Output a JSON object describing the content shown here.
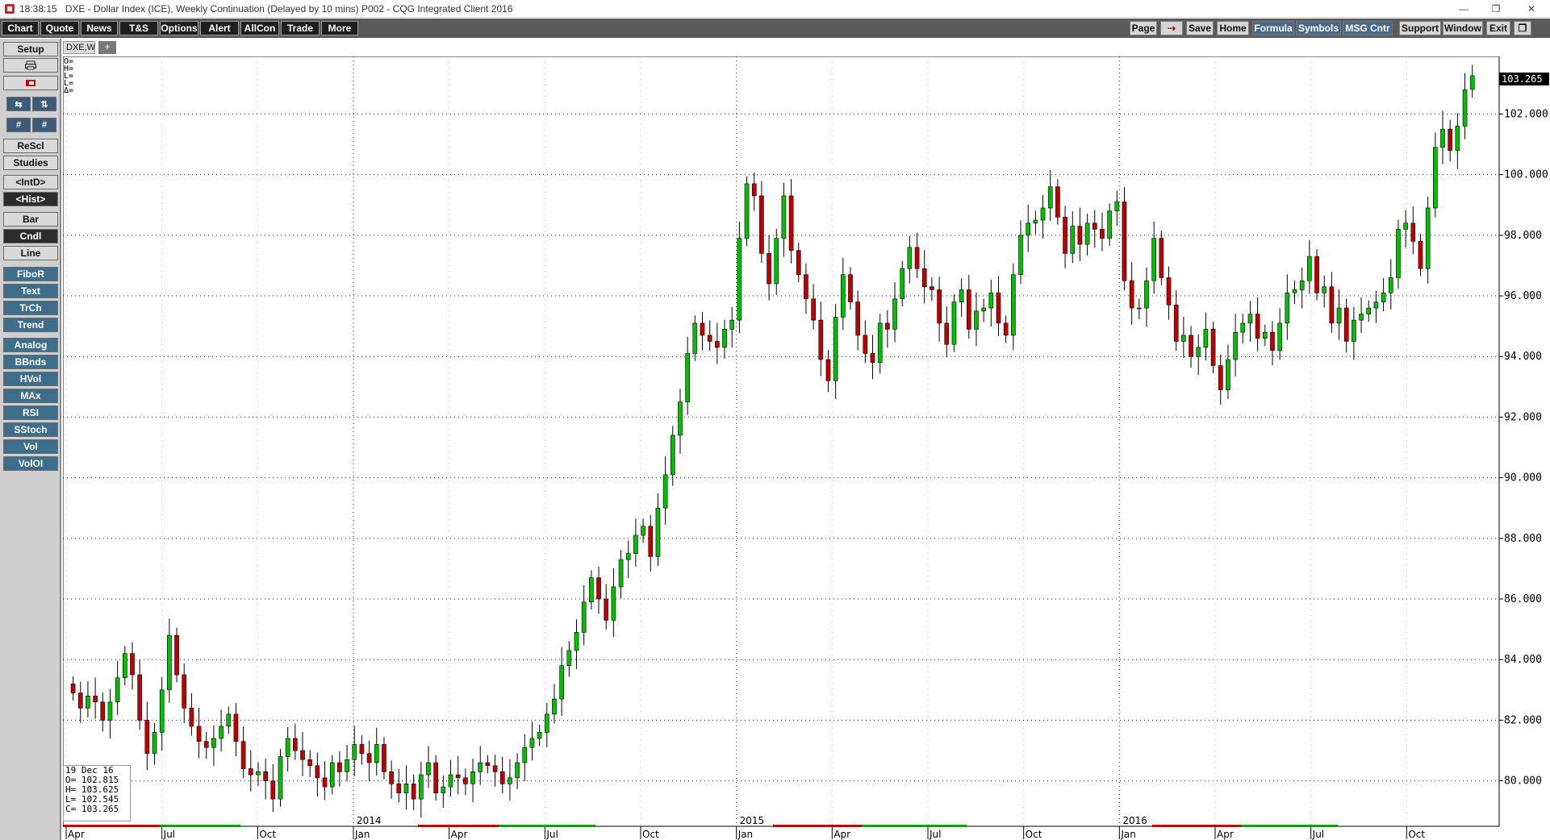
{
  "window": {
    "clock": "18:38:15",
    "title": "DXE - Dollar Index (ICE), Weekly Continuation (Delayed by 10 mins)   P002 - CQG Integrated Client 2016",
    "minimize_glyph": "—",
    "restore_glyph": "❐",
    "close_glyph": "✕"
  },
  "menu": {
    "left": [
      "Chart",
      "Quote",
      "News",
      "T&S",
      "Options",
      "Alert",
      "AllCon",
      "Trade",
      "More"
    ],
    "right": [
      "Page",
      "⇢",
      "Save",
      "Home",
      "Formula",
      "Symbols",
      "MSG Cntr",
      "Support",
      "Window",
      "Exit",
      "❐"
    ]
  },
  "sidebar": {
    "setup": "Setup",
    "print_icon": "printer-icon",
    "rescale": "ReScl",
    "studies": "Studies",
    "intd": "<IntD>",
    "hist": "<Hist>",
    "bar": "Bar",
    "cndl": "Cndl",
    "line": "Line",
    "tools": [
      "FiboR",
      "Text",
      "TrCh",
      "Trend"
    ],
    "indicators": [
      "Analog",
      "BBnds",
      "HVol",
      "MAx",
      "RSI",
      "SStoch",
      "Vol",
      "VolOI"
    ]
  },
  "chart_tab": {
    "label": "DXE,W",
    "add": "+"
  },
  "top_readout": [
    "O=",
    "H=",
    "L=",
    "L=",
    "Δ="
  ],
  "last_price": "103.265",
  "ohlc_panel": {
    "date": "19 Dec 16",
    "open": "O= 102.815",
    "high": "H= 103.625",
    "low": "L= 102.545",
    "close": "C= 103.265"
  },
  "colors": {
    "up": "#00c000",
    "down": "#c00000",
    "tag_bg": "#000000",
    "menu_bg": "#1e1e1e",
    "teal": "#3d6e8c"
  },
  "chart_data": {
    "type": "candlestick",
    "symbol": "DXE,W",
    "ylim": [
      78.5,
      103.9
    ],
    "y_ticks": [
      "80.000",
      "82.000",
      "84.000",
      "86.000",
      "88.000",
      "90.000",
      "92.000",
      "94.000",
      "96.000",
      "98.000",
      "100.000",
      "102.000"
    ],
    "x_year_labels": [
      "2014",
      "2015",
      "2016"
    ],
    "x_month_labels": [
      "Apr",
      "Jul",
      "Oct",
      "Jan",
      "Apr",
      "Jul",
      "Oct",
      "Jan",
      "Apr",
      "Jul",
      "Oct",
      "Jan",
      "Apr",
      "Jul",
      "Oct"
    ],
    "closes": [
      82.9,
      82.4,
      82.8,
      82.6,
      82.0,
      82.6,
      83.4,
      84.2,
      83.5,
      82.0,
      80.9,
      81.6,
      83.0,
      84.8,
      83.5,
      82.4,
      81.8,
      81.3,
      81.1,
      81.4,
      81.8,
      82.2,
      81.3,
      80.4,
      80.2,
      80.3,
      80.0,
      79.4,
      80.8,
      81.4,
      81.0,
      80.7,
      80.5,
      80.1,
      79.8,
      80.6,
      80.3,
      80.7,
      81.2,
      80.9,
      80.6,
      81.2,
      80.3,
      79.9,
      79.6,
      79.9,
      79.4,
      80.2,
      80.6,
      79.6,
      79.8,
      80.2,
      80.1,
      79.9,
      80.3,
      80.6,
      80.5,
      80.3,
      79.9,
      80.1,
      80.6,
      81.1,
      81.4,
      81.6,
      82.2,
      82.7,
      83.8,
      84.3,
      84.9,
      85.9,
      86.7,
      86.0,
      85.3,
      86.4,
      87.3,
      87.5,
      88.1,
      88.4,
      87.4,
      89.0,
      90.1,
      91.4,
      92.5,
      94.1,
      95.1,
      94.7,
      94.5,
      94.3,
      94.9,
      95.2,
      97.9,
      99.7,
      99.3,
      97.4,
      96.4,
      97.9,
      99.3,
      97.5,
      96.7,
      95.9,
      95.2,
      93.9,
      93.2,
      95.3,
      96.7,
      95.8,
      94.7,
      94.1,
      93.8,
      95.1,
      94.9,
      95.9,
      96.9,
      97.6,
      96.9,
      96.3,
      96.2,
      95.1,
      94.4,
      95.8,
      96.2,
      94.9,
      95.5,
      95.6,
      96.1,
      95.1,
      94.7,
      96.7,
      98.0,
      98.4,
      98.5,
      98.9,
      99.6,
      98.6,
      97.4,
      98.3,
      97.7,
      98.4,
      98.2,
      97.9,
      98.8,
      99.1,
      96.5,
      95.6,
      95.6,
      96.5,
      97.9,
      96.6,
      95.7,
      94.5,
      94.7,
      94.0,
      94.3,
      94.9,
      93.7,
      92.9,
      93.9,
      94.8,
      95.1,
      95.4,
      94.6,
      94.8,
      94.2,
      95.1,
      96.1,
      96.2,
      96.5,
      97.3,
      96.1,
      96.3,
      95.1,
      95.6,
      94.5,
      95.2,
      95.4,
      95.6,
      95.8,
      96.1,
      96.6,
      98.2,
      98.4,
      97.8,
      96.9,
      98.9,
      100.9,
      101.5,
      100.8,
      101.6,
      102.8,
      103.265
    ],
    "last_close": 103.265,
    "last_high": 103.625,
    "last_low": 102.545,
    "last_open": 102.815
  }
}
